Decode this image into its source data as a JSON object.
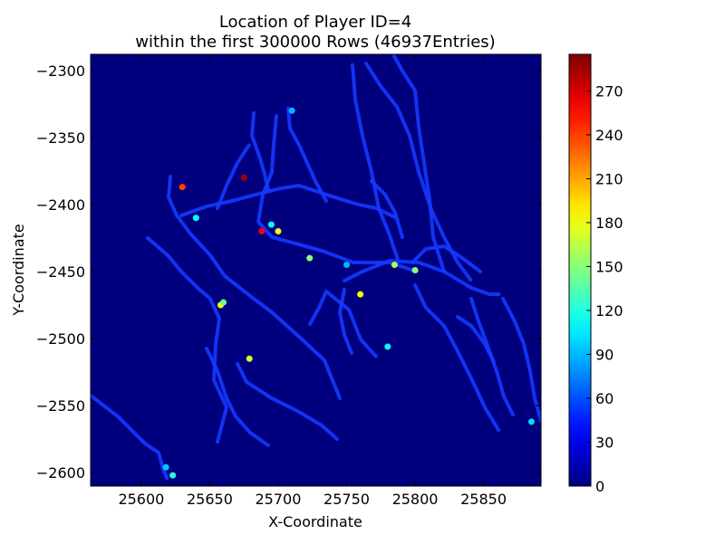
{
  "chart_data": {
    "type": "heatmap",
    "title": "Location of Player ID=4",
    "subtitle": "within the first 300000 Rows (46937Entries)",
    "xlabel": "X-Coordinate",
    "ylabel": "Y-Coordinate",
    "xlim": [
      25563,
      25892
    ],
    "ylim": [
      -2610,
      -2288
    ],
    "xticks": [
      25600,
      25650,
      25700,
      25750,
      25800,
      25850
    ],
    "xtick_labels": [
      "25600",
      "25650",
      "25700",
      "25750",
      "25800",
      "25850"
    ],
    "yticks": [
      -2300,
      -2350,
      -2400,
      -2450,
      -2500,
      -2550,
      -2600
    ],
    "ytick_labels": [
      "−2300",
      "−2350",
      "−2400",
      "−2450",
      "−2500",
      "−2550",
      "−2600"
    ],
    "background_color": "#00007f",
    "colormap": "jet",
    "colorbar": {
      "min": 0,
      "max": 295,
      "ticks": [
        0,
        30,
        60,
        90,
        120,
        150,
        180,
        210,
        240,
        270
      ],
      "tick_labels": [
        "0",
        "30",
        "60",
        "90",
        "120",
        "150",
        "180",
        "210",
        "240",
        "270"
      ]
    },
    "hotspots": [
      {
        "x": 25675,
        "y": -2380,
        "value": 285
      },
      {
        "x": 25688,
        "y": -2420,
        "value": 260
      },
      {
        "x": 25700,
        "y": -2420,
        "value": 175
      },
      {
        "x": 25630,
        "y": -2387,
        "value": 240
      },
      {
        "x": 25785,
        "y": -2445,
        "value": 160
      },
      {
        "x": 25800,
        "y": -2449,
        "value": 150
      },
      {
        "x": 25760,
        "y": -2467,
        "value": 185
      },
      {
        "x": 25658,
        "y": -2475,
        "value": 185
      },
      {
        "x": 25660,
        "y": -2473,
        "value": 140
      },
      {
        "x": 25710,
        "y": -2330,
        "value": 90
      },
      {
        "x": 25695,
        "y": -2415,
        "value": 110
      },
      {
        "x": 25723,
        "y": -2440,
        "value": 150
      },
      {
        "x": 25679,
        "y": -2515,
        "value": 170
      },
      {
        "x": 25780,
        "y": -2506,
        "value": 110
      },
      {
        "x": 25623,
        "y": -2602,
        "value": 120
      },
      {
        "x": 25618,
        "y": -2596,
        "value": 95
      },
      {
        "x": 25885,
        "y": -2562,
        "value": 100
      },
      {
        "x": 25640,
        "y": -2410,
        "value": 110
      },
      {
        "x": 25750,
        "y": -2445,
        "value": 90
      }
    ]
  }
}
